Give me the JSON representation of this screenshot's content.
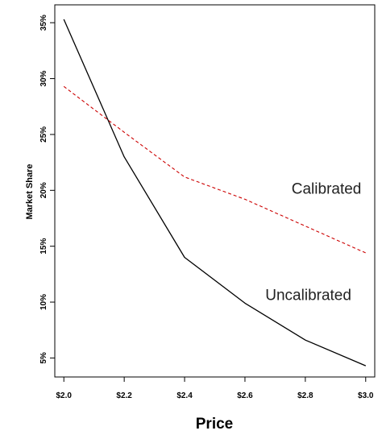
{
  "chart_data": {
    "type": "line",
    "xlabel": "Price",
    "ylabel": "Market Share",
    "x": [
      2.0,
      2.2,
      2.4,
      2.6,
      2.8,
      3.0
    ],
    "xlim": [
      1.97,
      3.03
    ],
    "ylim": [
      3.3,
      36.6
    ],
    "x_ticks": [
      {
        "value": 2.0,
        "label": "$2.0"
      },
      {
        "value": 2.2,
        "label": "$2.2"
      },
      {
        "value": 2.4,
        "label": "$2.4"
      },
      {
        "value": 2.6,
        "label": "$2.6"
      },
      {
        "value": 2.8,
        "label": "$2.8"
      },
      {
        "value": 3.0,
        "label": "$3.0"
      }
    ],
    "y_ticks": [
      {
        "value": 5,
        "label": "5%"
      },
      {
        "value": 10,
        "label": "10%"
      },
      {
        "value": 15,
        "label": "15%"
      },
      {
        "value": 20,
        "label": "20%"
      },
      {
        "value": 25,
        "label": "25%"
      },
      {
        "value": 30,
        "label": "30%"
      },
      {
        "value": 35,
        "label": "35%"
      }
    ],
    "grid": false,
    "series": [
      {
        "name": "Uncalibrated",
        "color": "#000000",
        "line_style": "solid",
        "values": [
          35.3,
          23.0,
          14.0,
          9.9,
          6.6,
          4.3
        ],
        "label_anchor": {
          "x": 2.81,
          "y": 10.2
        }
      },
      {
        "name": "Calibrated",
        "color": "#cc0000",
        "line_style": "dashed",
        "values": [
          29.3,
          25.2,
          21.2,
          19.2,
          16.8,
          14.4
        ],
        "label_anchor": {
          "x": 2.87,
          "y": 19.7
        }
      }
    ]
  }
}
